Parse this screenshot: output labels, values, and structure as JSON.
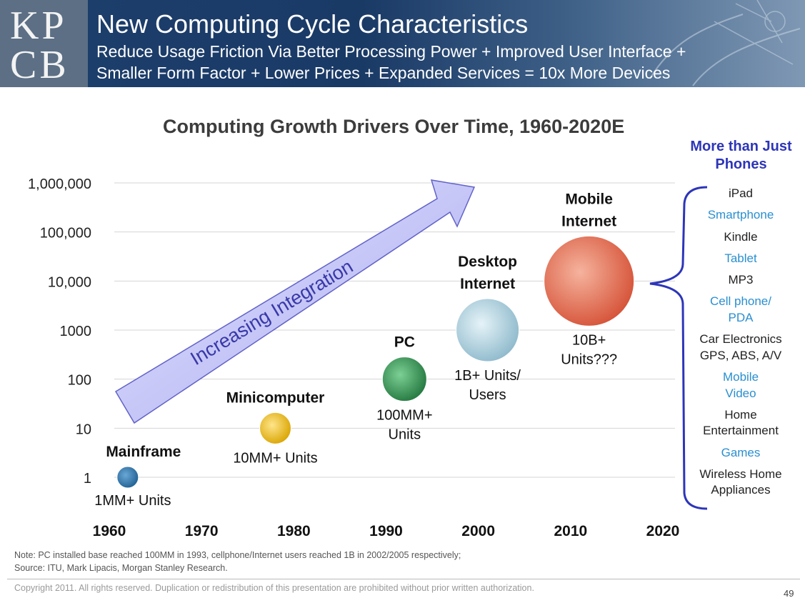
{
  "header": {
    "logo_line1": "KP",
    "logo_line2": "CB",
    "title": "New Computing Cycle Characteristics",
    "subtitle_line1": "Reduce Usage Friction Via Better Processing Power + Improved User Interface +",
    "subtitle_line2": "Smaller Form Factor + Lower Prices + Expanded Services = 10x More Devices"
  },
  "chart_data": {
    "type": "scatter",
    "title": "Computing Growth Drivers Over Time, 1960-2020E",
    "xlabel": "",
    "ylabel": "",
    "x_ticks": [
      "1960",
      "1970",
      "1980",
      "1990",
      "2000",
      "2010",
      "2020"
    ],
    "x_range": [
      1960,
      2020
    ],
    "y_scale": "log",
    "y_ticks": [
      "1",
      "10",
      "100",
      "1000",
      "10,000",
      "100,000",
      "1,000,000"
    ],
    "y_range": [
      1,
      1000000
    ],
    "grid": true,
    "arrow_label": "Increasing Integration",
    "points": [
      {
        "name": "Mainframe",
        "x": 1962,
        "y": 1,
        "units": "1MM+ Units",
        "color": "#1f5f91"
      },
      {
        "name": "Minicomputer",
        "x": 1978,
        "y": 10,
        "units": "10MM+ Units",
        "color": "#e8b200"
      },
      {
        "name": "PC",
        "x": 1992,
        "y": 100,
        "units": "100MM+ Units",
        "color": "#2e8b4e"
      },
      {
        "name": "Desktop Internet",
        "x": 2001,
        "y": 1000,
        "units": "1B+ Units/ Users",
        "color": "#9fc6d6"
      },
      {
        "name": "Mobile Internet",
        "x": 2012,
        "y": 10000,
        "units": "10B+ Units???",
        "color": "#e0644a"
      }
    ]
  },
  "sidebar": {
    "heading": "More than Just Phones",
    "items": [
      {
        "label": "iPad",
        "color": "#222222"
      },
      {
        "label": "Smartphone",
        "color": "#2a8fd0"
      },
      {
        "label": "Kindle",
        "color": "#222222"
      },
      {
        "label": "Tablet",
        "color": "#2a8fd0"
      },
      {
        "label": "MP3",
        "color": "#222222"
      },
      {
        "label": "Cell phone/ PDA",
        "color": "#2a8fd0"
      },
      {
        "label": "Car Electronics GPS, ABS, A/V",
        "color": "#222222"
      },
      {
        "label": "Mobile Video",
        "color": "#2a8fd0"
      },
      {
        "label": "Home Entertainment",
        "color": "#222222"
      },
      {
        "label": "Games",
        "color": "#2a8fd0"
      },
      {
        "label": "Wireless Home Appliances",
        "color": "#222222"
      }
    ]
  },
  "note_line1": "Note: PC installed base reached 100MM in 1993, cellphone/Internet users reached 1B in 2002/2005 respectively;",
  "note_line2": "Source: ITU, Mark Lipacis, Morgan Stanley Research.",
  "copyright": "Copyright 2011. All rights reserved. Duplication or redistribution of this presentation are prohibited without prior written authorization.",
  "page_number": "49"
}
